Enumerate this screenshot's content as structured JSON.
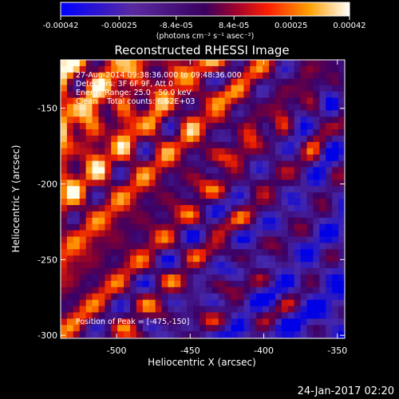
{
  "chart_data": {
    "type": "heatmap",
    "title": "Reconstructed RHESSI Image",
    "xlabel": "Heliocentric X (arcsec)",
    "ylabel": "Heliocentric Y (arcsec)",
    "xlim": [
      -538,
      -345
    ],
    "ylim": [
      -302,
      -118
    ],
    "x_ticks": [
      "-500",
      "-450",
      "-400",
      "-350"
    ],
    "y_ticks": [
      "-150",
      "-200",
      "-250",
      "-300"
    ],
    "x_tick_values": [
      -500,
      -450,
      -400,
      -350
    ],
    "y_tick_values": [
      -150,
      -200,
      -250,
      -300
    ],
    "colorbar": {
      "range": [
        -0.00042,
        0.00042
      ],
      "tick_labels": [
        "-0.00042",
        "-0.00025",
        "-8.4e-05",
        "8.4e-05",
        "0.00025",
        "0.00042"
      ],
      "tick_values": [
        -0.00042,
        -0.00025,
        -8.4e-05,
        8.4e-05,
        0.00025,
        0.00042
      ],
      "unit_label": "(photons cm⁻² s⁻¹ asec⁻²)",
      "colormap": "blue-purple-red-yellow-white"
    },
    "annotations": {
      "time": "27-Aug-2014 09:38:36.000 to 09:48:36.000",
      "detectors": "Detectors: 3F 6F 9F, Att 0",
      "energy": "Energy Range: 25.0 - 50.0 keV",
      "method": "Clean    Total counts: 6.62E+03",
      "peak": "Position of Peak = [-475,-150]"
    },
    "peak_position": [
      -475,
      -150
    ],
    "footer_date": "24-Jan-2017 02:20"
  },
  "colors": {
    "background": "#000000",
    "text": "#ffffff"
  }
}
